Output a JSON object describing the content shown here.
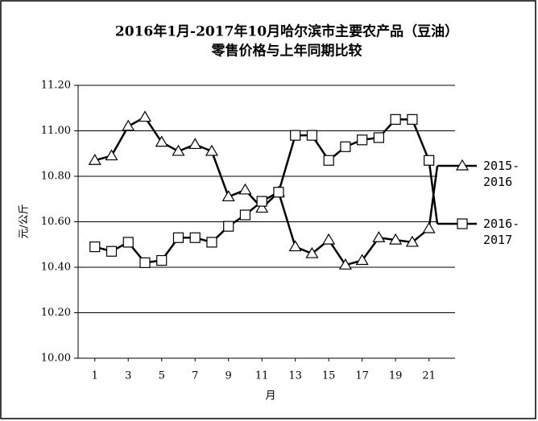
{
  "chart_data": {
    "type": "line",
    "title": [
      "2016年1月-2017年10月哈尔滨市主要农产品（豆油）",
      "零售价格与上年同期比较"
    ],
    "y_label": "元/公斤",
    "x_label": "月",
    "x": [
      1,
      2,
      3,
      4,
      5,
      6,
      7,
      8,
      9,
      10,
      11,
      12,
      13,
      14,
      15,
      16,
      17,
      18,
      19,
      20,
      21
    ],
    "series": [
      {
        "name": "2015-2016",
        "color": "#000000",
        "marker": "triangle",
        "values": [
          10.87,
          10.89,
          11.02,
          11.06,
          10.95,
          10.91,
          10.94,
          10.91,
          10.71,
          10.74,
          10.66,
          10.73,
          10.49,
          10.46,
          10.52,
          10.41,
          10.43,
          10.53,
          10.52,
          10.51,
          10.57
        ]
      },
      {
        "name": "2016-2017",
        "color": "#000000",
        "marker": "square",
        "values": [
          10.49,
          10.47,
          10.51,
          10.42,
          10.43,
          10.53,
          10.53,
          10.51,
          10.58,
          10.63,
          10.69,
          10.73,
          10.98,
          10.98,
          10.87,
          10.93,
          10.96,
          10.97,
          11.05,
          11.05,
          10.87
        ]
      }
    ],
    "xlim": [
      0,
      21.5
    ],
    "xticks": [
      1,
      3,
      5,
      7,
      9,
      11,
      13,
      15,
      17,
      19,
      21
    ],
    "ylim": [
      10.0,
      11.2
    ],
    "yticks": [
      {
        "value": 10.0,
        "label": "10.00"
      },
      {
        "value": 10.2,
        "label": "10.20"
      },
      {
        "value": 10.4,
        "label": "10.40"
      },
      {
        "value": 10.6,
        "label": "10.60"
      },
      {
        "value": 10.8,
        "label": "10.80"
      },
      {
        "value": 11.0,
        "label": "11.00"
      },
      {
        "value": 11.2,
        "label": "11.20"
      }
    ],
    "grid": true,
    "legend": "right"
  }
}
